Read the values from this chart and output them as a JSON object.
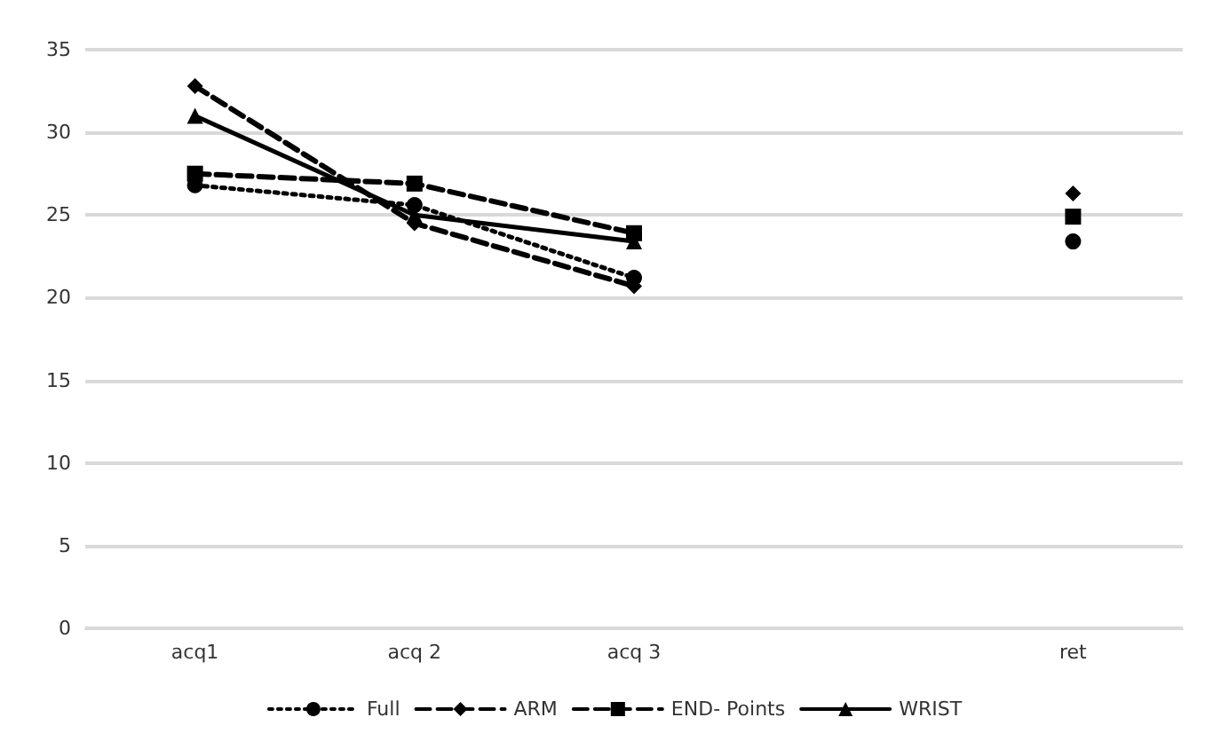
{
  "chart_data": {
    "type": "line",
    "categories": [
      "acq1",
      "acq 2",
      "acq 3",
      null,
      "ret"
    ],
    "series": [
      {
        "name": "Full",
        "color": "#000000",
        "values": [
          26.8,
          25.6,
          21.2,
          null,
          23.4
        ],
        "line_style": "dotted",
        "marker": "circle"
      },
      {
        "name": "ARM",
        "color": "#000000",
        "values": [
          32.8,
          24.5,
          20.7,
          null,
          26.3
        ],
        "line_style": "dashed",
        "marker": "diamond"
      },
      {
        "name": "END- Points",
        "color": "#000000",
        "values": [
          27.5,
          26.9,
          23.9,
          null,
          24.9
        ],
        "line_style": "dashed",
        "marker": "square"
      },
      {
        "name": "WRIST",
        "color": "#000000",
        "values": [
          31,
          25,
          23.4,
          null,
          null
        ],
        "line_style": "solid",
        "marker": "triangle"
      }
    ],
    "ylim": [
      0,
      35
    ],
    "yticks": [
      0,
      5,
      10,
      15,
      20,
      25,
      30,
      35
    ],
    "grid": "y",
    "legend": "bottom"
  }
}
